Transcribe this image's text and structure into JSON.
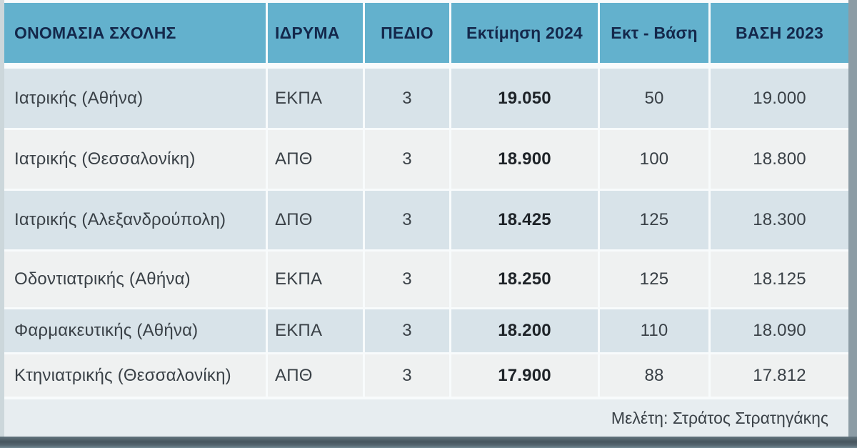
{
  "chart_data": {
    "type": "table",
    "columns": [
      "ΟΝΟΜΑΣΙΑ ΣΧΟΛΗΣ",
      "ΙΔΡΥΜΑ",
      "ΠΕΔΙΟ",
      "Εκτίμηση 2024",
      "Εκτ - Βάση",
      "ΒΑΣΗ 2023"
    ],
    "rows": [
      [
        "Ιατρικής (Αθήνα)",
        "ΕΚΠΑ",
        "3",
        "19.050",
        "50",
        "19.000"
      ],
      [
        "Ιατρικής (Θεσσαλονίκη)",
        "ΑΠΘ",
        "3",
        "18.900",
        "100",
        "18.800"
      ],
      [
        "Ιατρικής (Αλεξανδρούπολη)",
        "ΔΠΘ",
        "3",
        "18.425",
        "125",
        "18.300"
      ],
      [
        "Οδοντιατρικής (Αθήνα)",
        "ΕΚΠΑ",
        "3",
        "18.250",
        "125",
        "18.125"
      ],
      [
        "Φαρμακευτικής (Αθήνα)",
        "ΕΚΠΑ",
        "3",
        "18.200",
        "110",
        "18.090"
      ],
      [
        "Κτηνιατρικής (Θεσσαλονίκη)",
        "ΑΠΘ",
        "3",
        "17.900",
        "88",
        "17.812"
      ]
    ],
    "footnote": "Μελέτη: Στράτος Στρατηγάκης",
    "legend": "none",
    "grid": "white separators between cells"
  },
  "colors": {
    "header_bg": "#63b1cd",
    "header_text": "#14284b",
    "row_odd_bg": "#d8e3e9",
    "row_even_bg": "#eff1f1",
    "footer_bg": "#e7edf0",
    "body_text": "#3a4147",
    "estimate_text": "#1e2328",
    "separator": "#f8fbfc",
    "bottom_shadow": "#47565f",
    "right_shadow": "#8c9ca5"
  }
}
